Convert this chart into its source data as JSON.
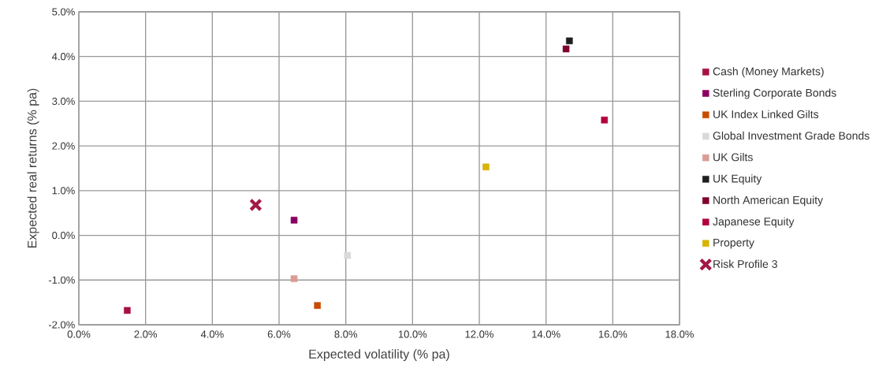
{
  "chart_data": {
    "type": "scatter",
    "xlabel": "Expected volatility (% pa)",
    "ylabel": "Expected real returns (% pa)",
    "xlim": [
      0,
      18
    ],
    "ylim": [
      -2,
      5
    ],
    "xticks": [
      {
        "value": 0,
        "label": "0.0%"
      },
      {
        "value": 2,
        "label": "2.0%"
      },
      {
        "value": 4,
        "label": "4.0%"
      },
      {
        "value": 6,
        "label": "6.0%"
      },
      {
        "value": 8,
        "label": "8.0%"
      },
      {
        "value": 10,
        "label": "10.0%"
      },
      {
        "value": 12,
        "label": "12.0%"
      },
      {
        "value": 14,
        "label": "14.0%"
      },
      {
        "value": 16,
        "label": "16.0%"
      },
      {
        "value": 18,
        "label": "18.0%"
      }
    ],
    "yticks": [
      {
        "value": -2,
        "label": "-2.0%"
      },
      {
        "value": -1,
        "label": "-1.0%"
      },
      {
        "value": 0,
        "label": "0.0%"
      },
      {
        "value": 1,
        "label": "1.0%"
      },
      {
        "value": 2,
        "label": "2.0%"
      },
      {
        "value": 3,
        "label": "3.0%"
      },
      {
        "value": 4,
        "label": "4.0%"
      },
      {
        "value": 5,
        "label": "5.0%"
      }
    ],
    "grid": true,
    "legend": "right",
    "marker": "square",
    "series": [
      {
        "name": "Cash (Money Markets)",
        "color": "#a8103f",
        "x": [
          1.45
        ],
        "values": [
          -1.68
        ]
      },
      {
        "name": "Sterling Corporate Bonds",
        "color": "#8a0060",
        "x": [
          6.45
        ],
        "values": [
          0.34
        ]
      },
      {
        "name": "UK Index Linked Gilts",
        "color": "#c84c00",
        "x": [
          7.15
        ],
        "values": [
          -1.57
        ]
      },
      {
        "name": "Global Investment Grade Bonds",
        "color": "#dadada",
        "x": [
          8.05
        ],
        "values": [
          -0.45
        ]
      },
      {
        "name": "UK Gilts",
        "color": "#d99d96",
        "x": [
          6.45
        ],
        "values": [
          -0.97
        ]
      },
      {
        "name": "UK Equity",
        "color": "#1e1e1c",
        "x": [
          14.7
        ],
        "values": [
          4.35
        ]
      },
      {
        "name": "North American Equity",
        "color": "#800030",
        "x": [
          14.6
        ],
        "values": [
          4.17
        ]
      },
      {
        "name": "Japanese Equity",
        "color": "#b0003c",
        "x": [
          15.75
        ],
        "values": [
          2.58
        ]
      },
      {
        "name": "Property",
        "color": "#d8b400",
        "x": [
          12.2
        ],
        "values": [
          1.53
        ]
      },
      {
        "name": "Risk Profile 3",
        "color": "#a31845",
        "x": [
          5.3
        ],
        "values": [
          0.68
        ],
        "marker": "cross"
      }
    ]
  }
}
